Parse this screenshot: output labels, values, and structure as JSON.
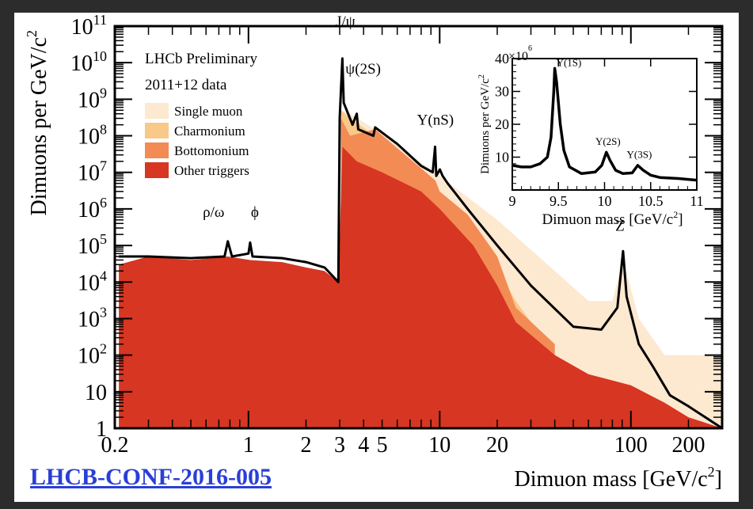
{
  "chart_data": {
    "type": "area",
    "xlabel": "Dimuon mass [GeV/c²]",
    "ylabel": "Dimuons per GeV/c²",
    "xscale": "log",
    "yscale": "log",
    "xlim": [
      0.2,
      300
    ],
    "ylim": [
      1,
      100000000000
    ],
    "xticks": [
      {
        "value": 0.2,
        "label": "0.2"
      },
      {
        "value": 1,
        "label": "1"
      },
      {
        "value": 2,
        "label": "2"
      },
      {
        "value": 3,
        "label": "3"
      },
      {
        "value": 4,
        "label": "4"
      },
      {
        "value": 5,
        "label": "5"
      },
      {
        "value": 10,
        "label": "10"
      },
      {
        "value": 20,
        "label": "20"
      },
      {
        "value": 100,
        "label": "100"
      },
      {
        "value": 200,
        "label": "200"
      }
    ],
    "yticks": [
      {
        "value": 1,
        "label": "1",
        "exp": ""
      },
      {
        "value": 10,
        "label": "10",
        "exp": ""
      },
      {
        "value": 100,
        "label": "10",
        "exp": "2"
      },
      {
        "value": 1000,
        "label": "10",
        "exp": "3"
      },
      {
        "value": 10000,
        "label": "10",
        "exp": "4"
      },
      {
        "value": 100000,
        "label": "10",
        "exp": "5"
      },
      {
        "value": 1000000,
        "label": "10",
        "exp": "6"
      },
      {
        "value": 10000000,
        "label": "10",
        "exp": "7"
      },
      {
        "value": 100000000,
        "label": "10",
        "exp": "8"
      },
      {
        "value": 1000000000,
        "label": "10",
        "exp": "9"
      },
      {
        "value": 10000000000,
        "label": "10",
        "exp": "10"
      },
      {
        "value": 100000000000,
        "label": "10",
        "exp": "11"
      }
    ],
    "header_lines": [
      "LHCb Preliminary",
      "2011+12 data"
    ],
    "legend_position": "top-left",
    "series": [
      {
        "name": "Single muon",
        "color": "#fde8d0",
        "points": [
          [
            3.05,
            500000000
          ],
          [
            3.4,
            400000000
          ],
          [
            4.6,
            150000000
          ],
          [
            10,
            8000000
          ],
          [
            20,
            500000
          ],
          [
            40,
            20000
          ],
          [
            60,
            3000
          ],
          [
            80,
            3000
          ],
          [
            91,
            40000
          ],
          [
            110,
            1000
          ],
          [
            150,
            100
          ],
          [
            300,
            100
          ]
        ]
      },
      {
        "name": "Charmonium",
        "color": "#f9c98a",
        "points": [
          [
            3.05,
            500000000
          ],
          [
            3.4,
            300000000
          ],
          [
            4.6,
            100000000
          ],
          [
            8,
            5000000
          ],
          [
            12,
            800000
          ],
          [
            18,
            60000
          ],
          [
            25,
            3000
          ],
          [
            30,
            800
          ]
        ]
      },
      {
        "name": "Bottomonium",
        "color": "#f38b55",
        "points": [
          [
            3.05,
            300000000
          ],
          [
            3.4,
            100000000
          ],
          [
            4.6,
            150000000
          ],
          [
            9.5,
            6000000
          ],
          [
            10,
            3000000
          ],
          [
            14,
            700000
          ],
          [
            20,
            50000
          ],
          [
            25,
            2000
          ],
          [
            40,
            200
          ]
        ]
      },
      {
        "name": "Other triggers",
        "color": "#d63622",
        "points": [
          [
            0.21,
            30000
          ],
          [
            0.3,
            50000
          ],
          [
            0.5,
            40000
          ],
          [
            0.78,
            50000
          ],
          [
            1.02,
            40000
          ],
          [
            1.5,
            35000
          ],
          [
            2,
            25000
          ],
          [
            2.5,
            20000
          ],
          [
            2.95,
            10000
          ],
          [
            3.1,
            50000000
          ],
          [
            3.68,
            20000000
          ],
          [
            5,
            10000000
          ],
          [
            8,
            3000000
          ],
          [
            10,
            1000000
          ],
          [
            15,
            100000
          ],
          [
            20,
            8000
          ],
          [
            25,
            800
          ],
          [
            40,
            100
          ],
          [
            60,
            30
          ],
          [
            100,
            15
          ],
          [
            150,
            5
          ],
          [
            200,
            2
          ],
          [
            300,
            1
          ]
        ]
      }
    ],
    "total": {
      "color": "#000000",
      "points": [
        [
          0.21,
          50000
        ],
        [
          0.3,
          50000
        ],
        [
          0.5,
          45000
        ],
        [
          0.75,
          50000
        ],
        [
          0.78,
          130000
        ],
        [
          0.82,
          50000
        ],
        [
          1.0,
          60000
        ],
        [
          1.02,
          120000
        ],
        [
          1.05,
          50000
        ],
        [
          1.5,
          45000
        ],
        [
          2,
          35000
        ],
        [
          2.5,
          25000
        ],
        [
          2.95,
          10000
        ],
        [
          3.0,
          300000000
        ],
        [
          3.097,
          13000000000
        ],
        [
          3.15,
          800000000
        ],
        [
          3.5,
          200000000
        ],
        [
          3.686,
          400000000
        ],
        [
          3.75,
          150000000
        ],
        [
          4.5,
          100000000
        ],
        [
          4.6,
          170000000
        ],
        [
          6,
          60000000
        ],
        [
          8,
          15000000
        ],
        [
          9.2,
          10000000
        ],
        [
          9.46,
          50000000
        ],
        [
          9.6,
          8000000
        ],
        [
          10.02,
          12000000
        ],
        [
          10.36,
          8000000
        ],
        [
          11,
          5000000
        ],
        [
          14,
          1000000
        ],
        [
          20,
          100000
        ],
        [
          30,
          8000
        ],
        [
          50,
          600
        ],
        [
          70,
          500
        ],
        [
          85,
          2000
        ],
        [
          91,
          70000
        ],
        [
          95,
          4000
        ],
        [
          110,
          200
        ],
        [
          130,
          50
        ],
        [
          160,
          8
        ],
        [
          200,
          4
        ],
        [
          300,
          1
        ]
      ]
    },
    "annotations": [
      {
        "text": "J/ψ",
        "x": 3.097,
        "y": 100000000000
      },
      {
        "text": "ψ(2S)",
        "x": 3.686,
        "y": 5000000000
      },
      {
        "text": "ρ/ω",
        "x": 0.78,
        "y": 600000
      },
      {
        "text": "ϕ",
        "x": 1.02,
        "y": 600000
      },
      {
        "text": "Υ(nS)",
        "x": 9.5,
        "y": 200000000
      },
      {
        "text": "Z",
        "x": 91,
        "y": 250000
      }
    ],
    "inset": {
      "type": "line",
      "xlabel": "Dimuon mass [GeV/c²]",
      "ylabel": "Dimuons per GeV/c²",
      "multiplier_base": "×10",
      "multiplier_exp": "6",
      "xlim": [
        9,
        11
      ],
      "ylim": [
        0,
        40
      ],
      "xticks": [
        {
          "value": 9,
          "label": "9"
        },
        {
          "value": 9.5,
          "label": "9.5"
        },
        {
          "value": 10,
          "label": "10"
        },
        {
          "value": 10.5,
          "label": "10.5"
        },
        {
          "value": 11,
          "label": "11"
        }
      ],
      "yticks": [
        {
          "value": 10,
          "label": "10"
        },
        {
          "value": 20,
          "label": "20"
        },
        {
          "value": 30,
          "label": "30"
        },
        {
          "value": 40,
          "label": "40"
        }
      ],
      "points": [
        [
          9,
          7.5
        ],
        [
          9.1,
          7
        ],
        [
          9.2,
          7
        ],
        [
          9.3,
          8
        ],
        [
          9.38,
          10
        ],
        [
          9.42,
          16
        ],
        [
          9.45,
          30
        ],
        [
          9.46,
          37
        ],
        [
          9.48,
          33
        ],
        [
          9.52,
          20
        ],
        [
          9.56,
          12
        ],
        [
          9.62,
          7
        ],
        [
          9.75,
          5
        ],
        [
          9.9,
          5.5
        ],
        [
          9.97,
          7.5
        ],
        [
          10.02,
          11.5
        ],
        [
          10.06,
          9
        ],
        [
          10.12,
          6
        ],
        [
          10.2,
          5
        ],
        [
          10.3,
          5.2
        ],
        [
          10.36,
          7.5
        ],
        [
          10.42,
          6
        ],
        [
          10.5,
          4.5
        ],
        [
          10.6,
          3.8
        ],
        [
          10.8,
          3.5
        ],
        [
          11,
          3
        ]
      ],
      "peaks": [
        {
          "text": "Υ(1S)",
          "x": 9.46,
          "y": 37
        },
        {
          "text": "Υ(2S)",
          "x": 10.02,
          "y": 13
        },
        {
          "text": "Υ(3S)",
          "x": 10.36,
          "y": 9
        }
      ]
    }
  },
  "reference": "LHCB-CONF-2016-005"
}
